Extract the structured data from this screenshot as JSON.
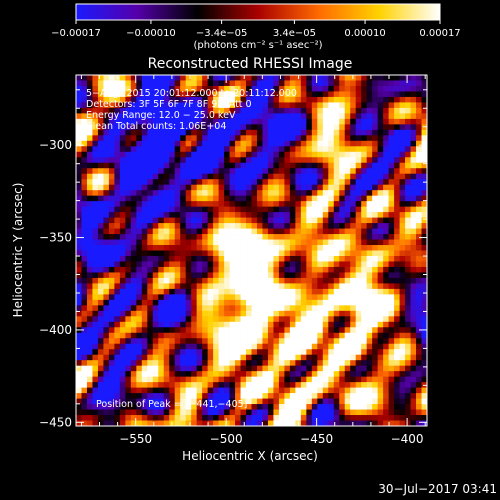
{
  "chart_data": {
    "type": "heatmap",
    "title": "Reconstructed RHESSI Image",
    "xlabel": "Heliocentric X (arcsec)",
    "ylabel": "Heliocentric Y (arcsec)",
    "xlim": [
      -583,
      -389
    ],
    "ylim": [
      -452,
      -262
    ],
    "x_ticks": [
      -550,
      -500,
      -450,
      -400
    ],
    "x_tick_labels": [
      "−550",
      "−500",
      "−450",
      "−400"
    ],
    "y_ticks": [
      -300,
      -350,
      -400,
      -450
    ],
    "y_tick_labels": [
      "−300",
      "−350",
      "−400",
      "−450"
    ],
    "colorbar": {
      "colors": [
        "#1a1aff",
        "#5500aa",
        "#000000",
        "#aa0000",
        "#ff6a00",
        "#ffd200",
        "#ffffff"
      ],
      "range": [
        -0.00017,
        0.00017
      ],
      "ticks": [
        -0.00017,
        -0.0001,
        -3.4e-05,
        3.4e-05,
        0.0001,
        0.00017
      ],
      "tick_labels": [
        "−0.00017",
        "−0.00010",
        "−3.4e−05",
        "3.4e−05",
        "0.00010",
        "0.00017"
      ],
      "unit_label": "(photons cm⁻² s⁻¹ asec⁻²)"
    },
    "annotations": [
      "5−Aug−2015 20:01:12.000 to 20:11:12.000",
      "Detectors: 3F 5F 6F 7F 8F 9F, Att 0",
      "Energy Range: 12.0 − 25.0 keV",
      "Clean     Total counts: 1.06E+04"
    ],
    "peak_label": "Position of Peak = [−441,−405]",
    "peak_position": [
      -441,
      -405
    ],
    "footer_timestamp": "30−Jul−2017 03:41",
    "grid_size": [
      64,
      64
    ]
  }
}
